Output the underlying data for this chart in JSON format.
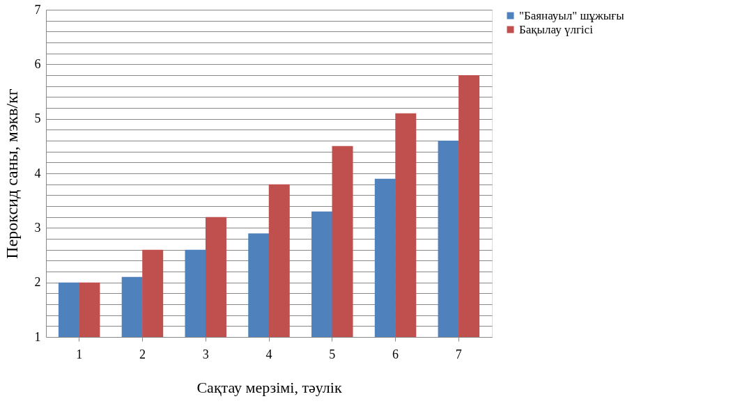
{
  "chart_data": {
    "type": "bar",
    "xlabel": "Сақтау мерзімі, тәулік",
    "ylabel": "Пероксид саны, мэкв/кг",
    "categories": [
      "1",
      "2",
      "3",
      "4",
      "5",
      "6",
      "7"
    ],
    "series": [
      {
        "name": "\"Баянауыл\" шұжығы",
        "color": "#4f81bd",
        "values": [
          2.0,
          2.1,
          2.6,
          2.9,
          3.3,
          3.9,
          4.6
        ]
      },
      {
        "name": "Бақылау үлгісі",
        "color": "#c0504d",
        "values": [
          2.0,
          2.6,
          3.2,
          3.8,
          4.5,
          5.1,
          5.8
        ]
      }
    ],
    "ylim": [
      1,
      7
    ],
    "yticks": [
      1,
      {
        "value": 1.2,
        "label": null
      },
      {
        "value": 1.4,
        "label": null
      },
      {
        "value": 1.6,
        "label": null
      },
      {
        "value": 1.8,
        "label": null
      },
      2,
      {
        "value": 2.2,
        "label": null
      },
      {
        "value": 2.4,
        "label": null
      },
      {
        "value": 2.6,
        "label": null
      },
      {
        "value": 2.8,
        "label": null
      },
      3,
      {
        "value": 3.2,
        "label": null
      },
      {
        "value": 3.4,
        "label": null
      },
      {
        "value": 3.6,
        "label": null
      },
      {
        "value": 3.8,
        "label": null
      },
      4,
      {
        "value": 4.2,
        "label": null
      },
      {
        "value": 4.4,
        "label": null
      },
      {
        "value": 4.6,
        "label": null
      },
      {
        "value": 4.8,
        "label": null
      },
      5,
      {
        "value": 5.2,
        "label": null
      },
      {
        "value": 5.4,
        "label": null
      },
      {
        "value": 5.6,
        "label": null
      },
      {
        "value": 5.8,
        "label": null
      },
      6,
      {
        "value": 6.2,
        "label": null
      },
      {
        "value": 6.4,
        "label": null
      },
      {
        "value": 6.6,
        "label": null
      },
      {
        "value": 6.8,
        "label": null
      },
      7
    ],
    "grid": "y",
    "legend": "right"
  }
}
